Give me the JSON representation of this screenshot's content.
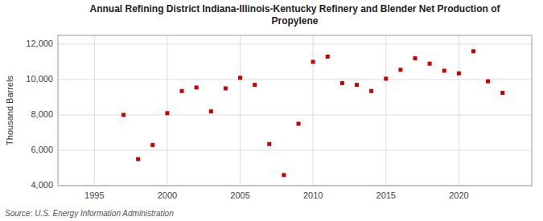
{
  "chart_data": {
    "type": "scatter",
    "title": "Annual Refining District Indiana-Illinois-Kentucky Refinery and Blender Net Production of\nPropylene",
    "y_label": "Thousand Barrels",
    "annotations": [
      "Source: U.S. Energy Information Administration"
    ],
    "x": [
      1993,
      1994,
      1995,
      1996,
      1997,
      1998,
      1999,
      2000,
      2001,
      2002,
      2003,
      2004,
      2005,
      2006,
      2007,
      2008,
      2009,
      2010,
      2011,
      2012,
      2013,
      2014,
      2015,
      2016,
      2017,
      2018,
      2019,
      2020,
      2021,
      2022,
      2023
    ],
    "values": [
      null,
      null,
      null,
      null,
      8000,
      5500,
      6300,
      8100,
      9350,
      9550,
      8200,
      9500,
      10100,
      9700,
      6350,
      4600,
      7500,
      11000,
      11300,
      9800,
      9700,
      9350,
      10050,
      10550,
      11200,
      10900,
      10500,
      10350,
      11600,
      9900,
      9250
    ],
    "color": "#cc0000",
    "marker": "square",
    "xlim": [
      1992.5,
      2025
    ],
    "ylim": [
      4000,
      12500
    ],
    "xticks": [
      1995,
      2000,
      2005,
      2010,
      2015,
      2020
    ],
    "yticks": [
      {
        "value": 4000,
        "label": "4,000"
      },
      {
        "value": 6000,
        "label": "6,000"
      },
      {
        "value": 8000,
        "label": "8,000"
      },
      {
        "value": 10000,
        "label": "10,000"
      },
      {
        "value": 12000,
        "label": "12,000"
      }
    ],
    "grid": true
  }
}
